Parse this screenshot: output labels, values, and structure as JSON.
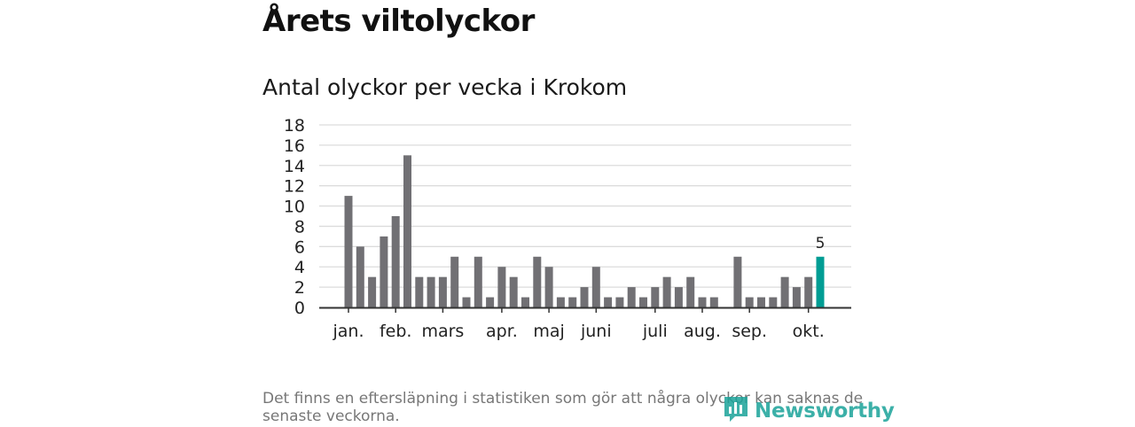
{
  "header": {
    "title": "Årets viltolyckor"
  },
  "chart_data": {
    "type": "bar",
    "title": "Antal olyckor per vecka i Krokom",
    "xlabel": "",
    "ylabel": "",
    "ylim": [
      0,
      18
    ],
    "yticks": [
      0,
      2,
      4,
      6,
      8,
      10,
      12,
      14,
      16,
      18
    ],
    "grid": true,
    "values": [
      11,
      6,
      3,
      7,
      9,
      15,
      3,
      3,
      3,
      5,
      1,
      5,
      1,
      4,
      3,
      1,
      5,
      4,
      1,
      1,
      2,
      4,
      1,
      1,
      2,
      1,
      2,
      3,
      2,
      3,
      1,
      1,
      0,
      5,
      1,
      1,
      1,
      3,
      2,
      3,
      5
    ],
    "month_labels": [
      {
        "label": "jan.",
        "week": 0
      },
      {
        "label": "feb.",
        "week": 4
      },
      {
        "label": "mars",
        "week": 8
      },
      {
        "label": "apr.",
        "week": 13
      },
      {
        "label": "maj",
        "week": 17
      },
      {
        "label": "juni",
        "week": 21
      },
      {
        "label": "juli",
        "week": 26
      },
      {
        "label": "aug.",
        "week": 30
      },
      {
        "label": "sep.",
        "week": 34
      },
      {
        "label": "okt.",
        "week": 39
      }
    ],
    "highlight_index": 40,
    "highlight_label": "5",
    "bar_color": "#717074",
    "highlight_color": "#009d94"
  },
  "footnote": "Det finns en eftersläpning i statistiken som gör att några olyckor kan saknas de senaste veckorna.",
  "brand": {
    "name": "Newsworthy",
    "icon": "newsworthy-logo-icon",
    "color": "#1ba39a"
  }
}
